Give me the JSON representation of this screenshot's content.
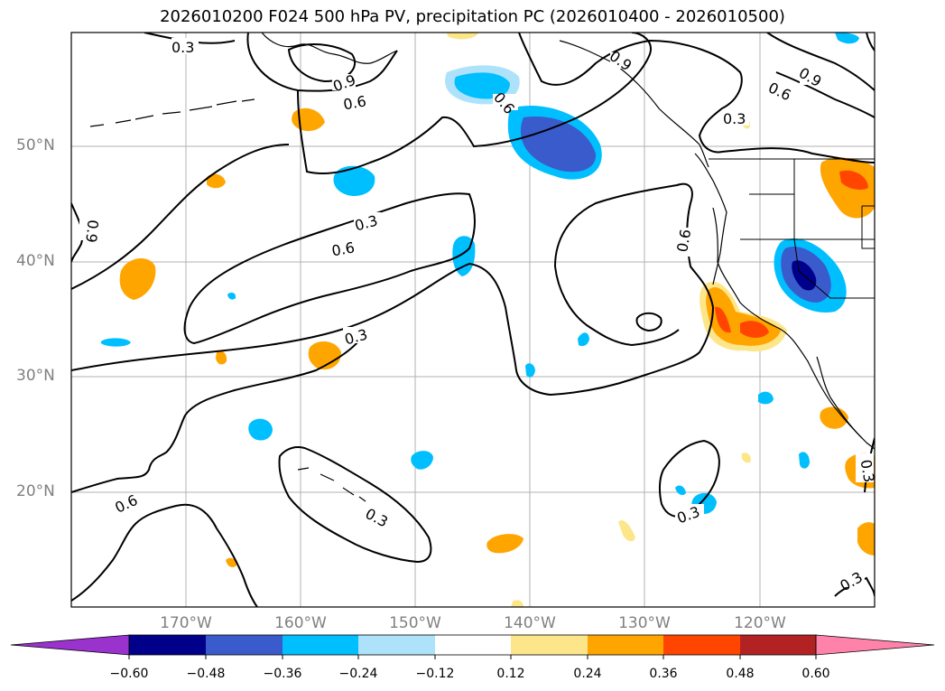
{
  "title": "2026010200 F024 500 hPa PV, precipitation PC (2026010400 - 2026010500)",
  "longitude_labels": [
    "170°W",
    "160°W",
    "150°W",
    "140°W",
    "130°W",
    "120°W"
  ],
  "latitude_labels": [
    "50°N",
    "40°N",
    "30°N",
    "20°N"
  ],
  "contour_labels": [
    "0.3",
    "0.9",
    "0.6",
    "0.6",
    "0.9",
    "0.6",
    "0.9",
    "0.3",
    "0.9",
    "0.3",
    "0.6",
    "0.6",
    "0.3",
    "0.3",
    "0.6",
    "0.3",
    "0.3",
    "0.3",
    "0.3"
  ],
  "colorbar": {
    "tick_labels": [
      "−0.60",
      "−0.48",
      "−0.36",
      "−0.24",
      "−0.12",
      "0.12",
      "0.24",
      "0.36",
      "0.48",
      "0.60"
    ],
    "colors": [
      "#9a32cd",
      "#00008b",
      "#3a5bcc",
      "#00bfff",
      "#aee2fa",
      "#ffffff",
      "#fde68a",
      "#ffa500",
      "#ff4500",
      "#b22222",
      "#ff82ab"
    ]
  },
  "colors": {
    "neg_weak": "#aee2fa",
    "neg_mid": "#00bfff",
    "neg_strong": "#3a5bcc",
    "neg_max": "#00008b",
    "pos_weak": "#fde68a",
    "pos_mid": "#ffa500",
    "pos_strong": "#ff4500",
    "grid": "#b0b0b0",
    "contour": "#000000",
    "axis_label": "#808080"
  }
}
